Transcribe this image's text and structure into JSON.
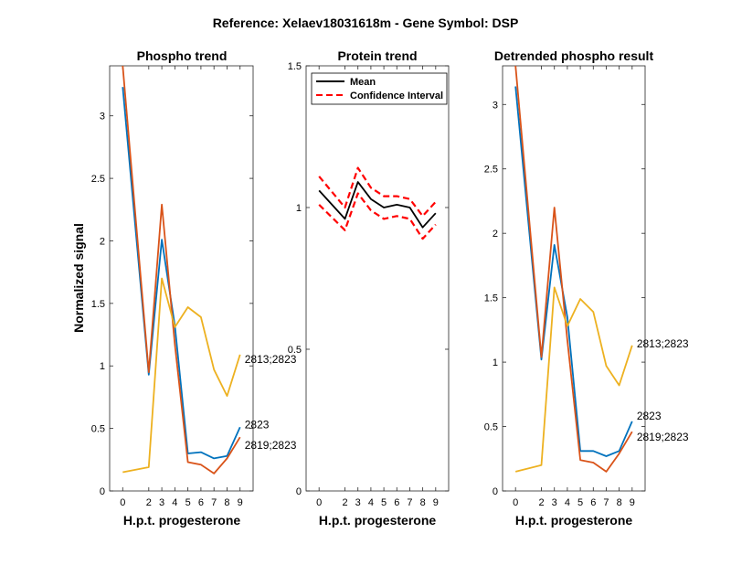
{
  "figure_title": "Reference:  Xelaev18031618m - Gene Symbol:  DSP",
  "colors": {
    "blue": "#0072BD",
    "orange": "#D95319",
    "yellow": "#EDB120",
    "black": "#000000",
    "red": "#FF0000"
  },
  "chart_data": [
    {
      "type": "line",
      "title": "Phospho trend",
      "xlabel": "H.p.t. progesterone",
      "ylabel": "Normalized signal",
      "x": [
        0,
        2,
        3,
        4,
        5,
        6,
        7,
        8,
        9
      ],
      "xticks": [
        "0",
        "2",
        "3",
        "4",
        "5",
        "6",
        "7",
        "8",
        "9"
      ],
      "ylim": [
        0,
        3.4
      ],
      "yticks": [
        0,
        0.5,
        1,
        1.5,
        2,
        2.5,
        3
      ],
      "ytick_labels": [
        "0",
        "0.5",
        "1",
        "1.5",
        "2",
        "2.5",
        "3"
      ],
      "series": [
        {
          "name": "2823",
          "color": "#0072BD",
          "values": [
            3.23,
            0.93,
            2.01,
            1.32,
            0.3,
            0.31,
            0.26,
            0.28,
            0.51
          ]
        },
        {
          "name": "2819;2823",
          "color": "#D95319",
          "values": [
            3.4,
            0.95,
            2.29,
            1.17,
            0.23,
            0.21,
            0.14,
            0.26,
            0.43
          ]
        },
        {
          "name": "2813;2823",
          "color": "#EDB120",
          "values": [
            0.15,
            0.19,
            1.7,
            1.31,
            1.47,
            1.39,
            0.97,
            0.76,
            1.09
          ]
        }
      ]
    },
    {
      "type": "line",
      "title": "Protein trend",
      "xlabel": "H.p.t. progesterone",
      "ylabel": "",
      "x": [
        0,
        2,
        3,
        4,
        5,
        6,
        7,
        8,
        9
      ],
      "xticks": [
        "0",
        "2",
        "3",
        "4",
        "5",
        "6",
        "7",
        "8",
        "9"
      ],
      "ylim": [
        0,
        1.5
      ],
      "yticks": [
        0,
        0.5,
        1,
        1.5
      ],
      "ytick_labels": [
        "0",
        "0.5",
        "1",
        "1.5"
      ],
      "legend": {
        "placement": "top-left",
        "entries": [
          "Mean",
          "Confidence Interval"
        ]
      },
      "series": [
        {
          "name": "Mean",
          "color": "#000000",
          "style": "solid",
          "values": [
            1.06,
            0.96,
            1.09,
            1.03,
            1.0,
            1.01,
            1.0,
            0.93,
            0.98
          ]
        },
        {
          "name": "Confidence Interval (upper)",
          "color": "#FF0000",
          "style": "dashed",
          "values": [
            1.11,
            1.0,
            1.14,
            1.07,
            1.04,
            1.04,
            1.03,
            0.97,
            1.02
          ]
        },
        {
          "name": "Confidence Interval (lower)",
          "color": "#FF0000",
          "style": "dashed",
          "values": [
            1.01,
            0.92,
            1.05,
            0.99,
            0.96,
            0.97,
            0.96,
            0.89,
            0.94
          ]
        }
      ]
    },
    {
      "type": "line",
      "title": "Detrended phospho result",
      "xlabel": "H.p.t. progesterone",
      "ylabel": "",
      "x": [
        0,
        2,
        3,
        4,
        5,
        6,
        7,
        8,
        9
      ],
      "xticks": [
        "0",
        "2",
        "3",
        "4",
        "5",
        "6",
        "7",
        "8",
        "9"
      ],
      "ylim": [
        0,
        3.3
      ],
      "yticks": [
        0,
        0.5,
        1,
        1.5,
        2,
        2.5,
        3
      ],
      "ytick_labels": [
        "0",
        "0.5",
        "1",
        "1.5",
        "2",
        "2.5",
        "3"
      ],
      "series": [
        {
          "name": "2823",
          "color": "#0072BD",
          "values": [
            3.14,
            1.02,
            1.91,
            1.35,
            0.31,
            0.31,
            0.27,
            0.31,
            0.54
          ]
        },
        {
          "name": "2819;2823",
          "color": "#D95319",
          "values": [
            3.3,
            1.04,
            2.2,
            1.17,
            0.24,
            0.22,
            0.15,
            0.29,
            0.46
          ]
        },
        {
          "name": "2813;2823",
          "color": "#EDB120",
          "values": [
            0.15,
            0.2,
            1.58,
            1.28,
            1.49,
            1.39,
            0.97,
            0.82,
            1.13
          ]
        }
      ]
    }
  ]
}
